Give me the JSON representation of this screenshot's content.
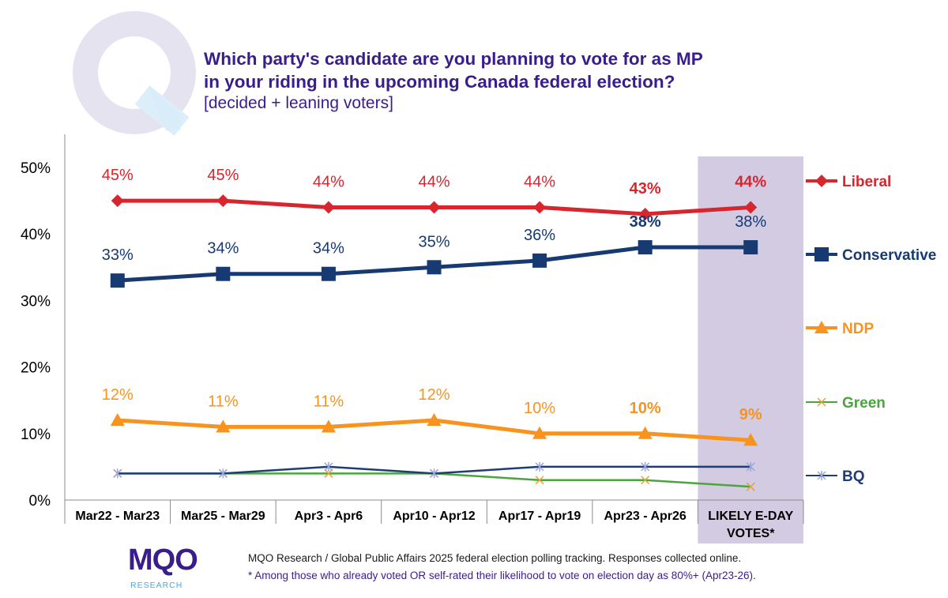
{
  "title_line1": "Which party's candidate are you planning to vote for as MP",
  "title_line2": "in your riding in the upcoming Canada federal election?",
  "subtitle": "[decided + leaning voters]",
  "footnote_line1": "MQO Research / Global Public Affairs 2025 federal election polling tracking. Responses collected online.",
  "footnote_line2": "* Among those who already voted OR self-rated their likelihood to vote on election day as 80%+ (Apr23-26).",
  "logo": {
    "text": "MQO",
    "subtext": "RESEARCH"
  },
  "colors": {
    "title": "#3a1d8c",
    "liberal": "#d7262e",
    "conservative": "#173a72",
    "ndp": "#f7931e",
    "green": "#4aa63c",
    "bq": "#1f3c78",
    "highlight_band": "#d3cbe2",
    "axis_text": "#000000"
  },
  "chart_data": {
    "type": "line",
    "categories": [
      "Mar22 - Mar23",
      "Mar25 - Mar29",
      "Apr3 - Apr6",
      "Apr10 - Apr12",
      "Apr17 - Apr19",
      "Apr23 - Apr26",
      "LIKELY E-DAY VOTES*"
    ],
    "highlighted_category": "LIKELY E-DAY VOTES*",
    "yticks": [
      "0%",
      "10%",
      "20%",
      "30%",
      "40%",
      "50%"
    ],
    "ylim": [
      0,
      50
    ],
    "grid": false,
    "legend_placement": "right",
    "series": [
      {
        "name": "Liberal",
        "color": "#d7262e",
        "marker": "diamond",
        "values": [
          45,
          45,
          44,
          44,
          44,
          43,
          44
        ],
        "labels": [
          "45%",
          "45%",
          "44%",
          "44%",
          "44%",
          "43%",
          "44%"
        ],
        "bold_labels": [
          false,
          false,
          false,
          false,
          false,
          true,
          true
        ]
      },
      {
        "name": "Conservative",
        "color": "#173a72",
        "marker": "square",
        "values": [
          33,
          34,
          34,
          35,
          36,
          38,
          38
        ],
        "labels": [
          "33%",
          "34%",
          "34%",
          "35%",
          "36%",
          "38%",
          "38%"
        ],
        "bold_labels": [
          false,
          false,
          false,
          false,
          false,
          true,
          false
        ]
      },
      {
        "name": "NDP",
        "color": "#f7931e",
        "marker": "triangle",
        "values": [
          12,
          11,
          11,
          12,
          10,
          10,
          9
        ],
        "labels": [
          "12%",
          "11%",
          "11%",
          "12%",
          "10%",
          "10%",
          "9%"
        ],
        "bold_labels": [
          false,
          false,
          false,
          false,
          false,
          true,
          true
        ]
      },
      {
        "name": "Green",
        "color": "#4aa63c",
        "marker": "x",
        "values": [
          4,
          4,
          4,
          4,
          3,
          3,
          2
        ],
        "labels": []
      },
      {
        "name": "BQ",
        "color": "#1f3c78",
        "marker": "star",
        "values": [
          4,
          4,
          5,
          4,
          5,
          5,
          5
        ],
        "labels": []
      }
    ]
  }
}
